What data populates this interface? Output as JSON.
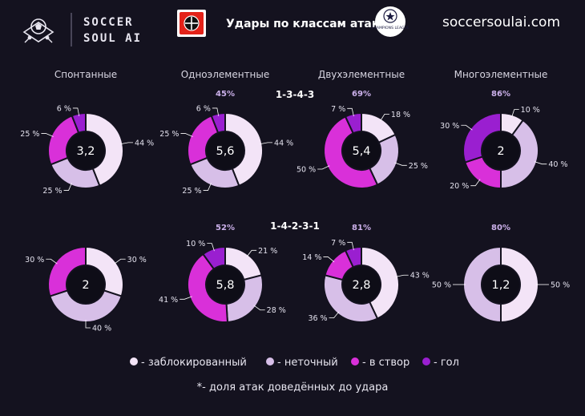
{
  "header": {
    "brand_line1": "SOCCER",
    "brand_line2": "SOUL AI",
    "title": "Удары по классам атак",
    "site": "soccersoulai.com",
    "club_logo_icon": "bayer-leverkusen-crest-icon",
    "tournament_logo_icon": "champions-league-starball-icon",
    "tournament_logo_text": "CHAMPIONS LEAGUE"
  },
  "colors": {
    "background": "#14121f",
    "blocked": "#f3e4f7",
    "inaccurate": "#d7bfe8",
    "on_target": "#d930d9",
    "goal": "#9a1fd0",
    "hole": "#0e0d17"
  },
  "columns": [
    "Спонтанные",
    "Одноэлементные",
    "Двухэлементные",
    "Многоэлементные"
  ],
  "chart_data": {
    "type": "pie",
    "title": "Удары по классам атак",
    "categories": [
      "заблокированный",
      "неточный",
      "в створ",
      "гол"
    ],
    "rows": [
      {
        "formation": "1-3-4-3",
        "charts": [
          {
            "column": "Спонтанные",
            "center": "3,2",
            "share": "",
            "values": [
              44,
              25,
              25,
              6
            ],
            "labels": [
              "44 %",
              "25 %",
              "25 %",
              "6 %"
            ]
          },
          {
            "column": "Одноэлементные",
            "center": "5,6",
            "share": "45%",
            "values": [
              44,
              25,
              25,
              6
            ],
            "labels": [
              "44 %",
              "25 %",
              "25 %",
              "6 %"
            ]
          },
          {
            "column": "Двухэлементные",
            "center": "5,4",
            "share": "69%",
            "values": [
              18,
              25,
              50,
              7
            ],
            "labels": [
              "18 %",
              "25 %",
              "50 %",
              "7 %"
            ]
          },
          {
            "column": "Многоэлементные",
            "center": "2",
            "share": "86%",
            "values": [
              10,
              40,
              20,
              30
            ],
            "labels": [
              "10 %",
              "40 %",
              "20 %",
              "30 %"
            ]
          }
        ]
      },
      {
        "formation": "1-4-2-3-1",
        "charts": [
          {
            "column": "Спонтанные",
            "center": "2",
            "share": "",
            "values": [
              30,
              40,
              30,
              0
            ],
            "labels": [
              "30 %",
              "40 %",
              "30 %",
              ""
            ]
          },
          {
            "column": "Одноэлементные",
            "center": "5,8",
            "share": "52%",
            "values": [
              21,
              28,
              41,
              10
            ],
            "labels": [
              "21 %",
              "28 %",
              "41 %",
              "10 %"
            ]
          },
          {
            "column": "Двухэлементные",
            "center": "2,8",
            "share": "81%",
            "values": [
              43,
              36,
              14,
              7
            ],
            "labels": [
              "43 %",
              "36 %",
              "14 %",
              "7 %"
            ]
          },
          {
            "column": "Многоэлементные",
            "center": "1,2",
            "share": "80%",
            "values": [
              50,
              50,
              0,
              0
            ],
            "labels": [
              "50 %",
              "50 %",
              "",
              ""
            ]
          }
        ]
      }
    ],
    "legend": [
      "- заблокированный",
      "- неточный",
      "- в створ",
      "- гол"
    ],
    "legend_position": "bottom",
    "footnote": "*- доля атак доведённых до удара"
  }
}
